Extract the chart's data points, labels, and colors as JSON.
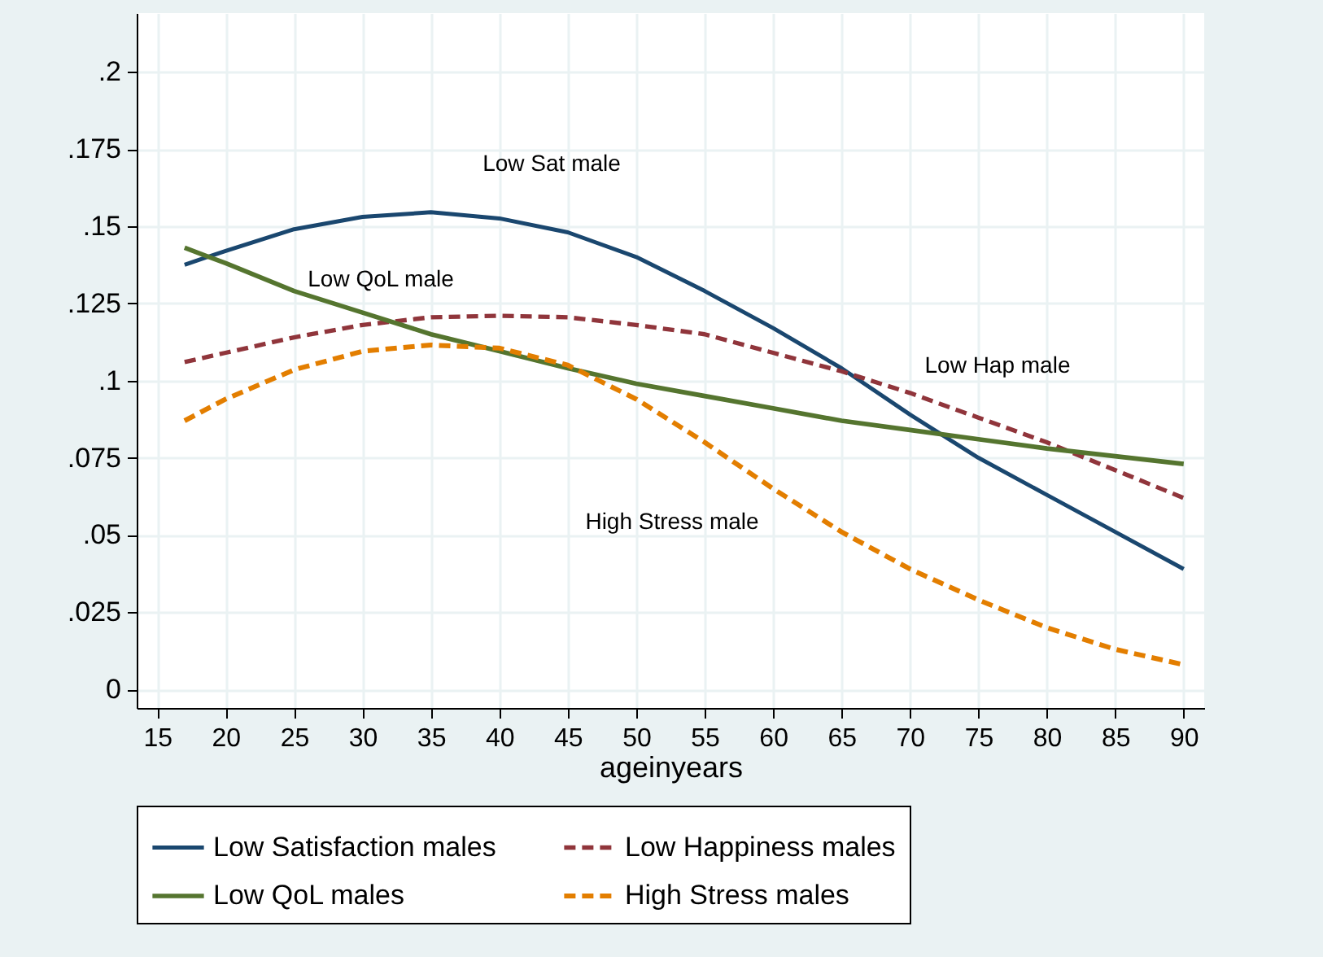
{
  "chart_data": {
    "type": "line",
    "xlabel": "ageinyears",
    "x": [
      17,
      20,
      25,
      30,
      35,
      40,
      45,
      50,
      55,
      60,
      65,
      70,
      75,
      80,
      85,
      90
    ],
    "series": [
      {
        "name": "Low Satisfaction males",
        "color": "#1a476f",
        "line_style": "solid",
        "values": [
          0.1375,
          0.142,
          0.149,
          0.153,
          0.1545,
          0.1525,
          0.148,
          0.14,
          0.129,
          0.117,
          0.104,
          0.089,
          0.075,
          0.063,
          0.051,
          0.039
        ]
      },
      {
        "name": "Low Happiness males",
        "color": "#90353b",
        "line_style": "dashed",
        "values": [
          0.106,
          0.109,
          0.114,
          0.118,
          0.1205,
          0.121,
          0.1205,
          0.118,
          0.115,
          0.109,
          0.103,
          0.096,
          0.088,
          0.08,
          0.071,
          0.062
        ]
      },
      {
        "name": "Low QoL males",
        "color": "#55752f",
        "line_style": "solid",
        "values": [
          0.143,
          0.138,
          0.129,
          0.122,
          0.115,
          0.1095,
          0.104,
          0.099,
          0.095,
          0.091,
          0.087,
          0.084,
          0.081,
          0.078,
          0.0755,
          0.073
        ]
      },
      {
        "name": "High Stress males",
        "color": "#e37e00",
        "line_style": "dashed",
        "values": [
          0.087,
          0.094,
          0.1035,
          0.1095,
          0.1115,
          0.1105,
          0.105,
          0.094,
          0.08,
          0.065,
          0.051,
          0.039,
          0.029,
          0.02,
          0.013,
          0.008
        ]
      }
    ],
    "annotations": [
      "Low Sat male",
      "Low QoL male",
      "Low Hap male",
      "High Stress male"
    ],
    "xlim": [
      13.5,
      91.5
    ],
    "xticks": [
      15,
      20,
      25,
      30,
      35,
      40,
      45,
      50,
      55,
      60,
      65,
      70,
      75,
      80,
      85,
      90
    ],
    "ylim": [
      -0.006,
      0.219
    ],
    "yticks": [
      {
        "value": 0,
        "label": "0"
      },
      {
        "value": 0.025,
        "label": ".025"
      },
      {
        "value": 0.05,
        "label": ".05"
      },
      {
        "value": 0.075,
        "label": ".075"
      },
      {
        "value": 0.1,
        "label": ".1"
      },
      {
        "value": 0.125,
        "label": ".125"
      },
      {
        "value": 0.15,
        "label": ".15"
      },
      {
        "value": 0.175,
        "label": ".175"
      },
      {
        "value": 0.2,
        "label": ".2"
      }
    ],
    "grid": true,
    "legend": "bottom"
  }
}
